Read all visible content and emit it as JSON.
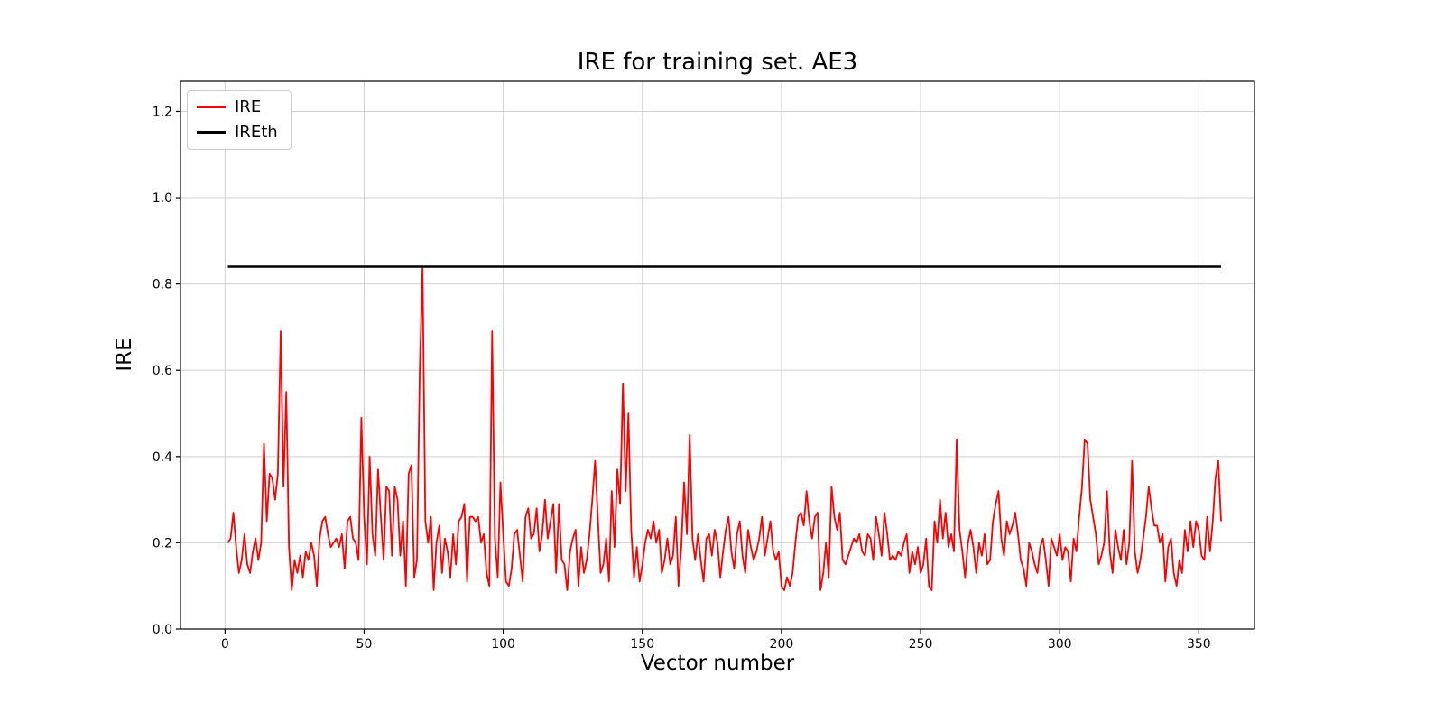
{
  "figure": {
    "background": "#ffffff"
  },
  "chart_data": {
    "type": "line",
    "title": "IRE for training set. AE3",
    "xlabel": "Vector number",
    "ylabel": "IRE",
    "xlim": [
      -16,
      370
    ],
    "ylim": [
      0,
      1.27
    ],
    "x_ticks": [
      0,
      50,
      100,
      150,
      200,
      250,
      300,
      350
    ],
    "x_tick_labels": [
      "0",
      "50",
      "100",
      "150",
      "200",
      "250",
      "300",
      "350"
    ],
    "y_ticks": [
      0.0,
      0.2,
      0.4,
      0.6,
      0.8,
      1.0,
      1.2
    ],
    "y_tick_labels": [
      "0.0",
      "0.2",
      "0.4",
      "0.6",
      "0.8",
      "1.0",
      "1.2"
    ],
    "grid": true,
    "grid_color": "#d0d0d0",
    "frame_color": "#000000",
    "legend": {
      "position": "upper left",
      "entries": [
        {
          "label": "IRE",
          "color": "#ff0000"
        },
        {
          "label": "IREth",
          "color": "#000000"
        }
      ]
    },
    "series": [
      {
        "name": "IRE",
        "color": "#ff0000",
        "line_width": 1.8,
        "x_start": 1,
        "values": [
          0.2,
          0.21,
          0.27,
          0.19,
          0.13,
          0.16,
          0.22,
          0.15,
          0.13,
          0.18,
          0.21,
          0.16,
          0.2,
          0.43,
          0.25,
          0.36,
          0.35,
          0.3,
          0.36,
          0.69,
          0.33,
          0.55,
          0.19,
          0.09,
          0.16,
          0.13,
          0.17,
          0.12,
          0.18,
          0.16,
          0.2,
          0.17,
          0.1,
          0.21,
          0.25,
          0.26,
          0.22,
          0.19,
          0.2,
          0.21,
          0.19,
          0.22,
          0.14,
          0.25,
          0.26,
          0.21,
          0.2,
          0.16,
          0.49,
          0.26,
          0.15,
          0.4,
          0.22,
          0.17,
          0.37,
          0.26,
          0.16,
          0.33,
          0.32,
          0.17,
          0.33,
          0.3,
          0.17,
          0.25,
          0.1,
          0.36,
          0.38,
          0.12,
          0.16,
          0.6,
          0.84,
          0.25,
          0.2,
          0.26,
          0.09,
          0.2,
          0.24,
          0.13,
          0.21,
          0.18,
          0.12,
          0.22,
          0.15,
          0.25,
          0.26,
          0.29,
          0.11,
          0.26,
          0.26,
          0.25,
          0.26,
          0.2,
          0.22,
          0.13,
          0.1,
          0.69,
          0.21,
          0.12,
          0.34,
          0.22,
          0.11,
          0.1,
          0.14,
          0.22,
          0.23,
          0.17,
          0.11,
          0.26,
          0.28,
          0.21,
          0.22,
          0.28,
          0.18,
          0.22,
          0.3,
          0.21,
          0.25,
          0.29,
          0.13,
          0.29,
          0.16,
          0.15,
          0.09,
          0.18,
          0.21,
          0.23,
          0.1,
          0.19,
          0.13,
          0.16,
          0.22,
          0.3,
          0.39,
          0.26,
          0.13,
          0.15,
          0.21,
          0.11,
          0.32,
          0.19,
          0.37,
          0.29,
          0.57,
          0.32,
          0.5,
          0.23,
          0.12,
          0.19,
          0.11,
          0.15,
          0.2,
          0.23,
          0.21,
          0.25,
          0.2,
          0.23,
          0.13,
          0.16,
          0.21,
          0.15,
          0.17,
          0.26,
          0.1,
          0.19,
          0.34,
          0.22,
          0.45,
          0.21,
          0.16,
          0.22,
          0.16,
          0.11,
          0.21,
          0.22,
          0.17,
          0.23,
          0.2,
          0.12,
          0.18,
          0.23,
          0.26,
          0.18,
          0.14,
          0.22,
          0.25,
          0.17,
          0.13,
          0.23,
          0.19,
          0.16,
          0.18,
          0.21,
          0.26,
          0.17,
          0.21,
          0.25,
          0.18,
          0.16,
          0.18,
          0.1,
          0.09,
          0.12,
          0.1,
          0.13,
          0.2,
          0.26,
          0.27,
          0.24,
          0.32,
          0.25,
          0.21,
          0.26,
          0.27,
          0.09,
          0.13,
          0.2,
          0.12,
          0.33,
          0.26,
          0.23,
          0.27,
          0.16,
          0.15,
          0.17,
          0.19,
          0.21,
          0.2,
          0.22,
          0.18,
          0.17,
          0.22,
          0.21,
          0.16,
          0.26,
          0.22,
          0.17,
          0.27,
          0.22,
          0.16,
          0.17,
          0.16,
          0.18,
          0.17,
          0.2,
          0.22,
          0.13,
          0.18,
          0.15,
          0.19,
          0.13,
          0.15,
          0.21,
          0.1,
          0.09,
          0.25,
          0.2,
          0.3,
          0.21,
          0.27,
          0.19,
          0.22,
          0.18,
          0.44,
          0.23,
          0.18,
          0.12,
          0.2,
          0.23,
          0.19,
          0.13,
          0.2,
          0.17,
          0.22,
          0.15,
          0.16,
          0.25,
          0.29,
          0.32,
          0.21,
          0.17,
          0.25,
          0.22,
          0.24,
          0.27,
          0.22,
          0.16,
          0.14,
          0.1,
          0.2,
          0.18,
          0.15,
          0.13,
          0.19,
          0.21,
          0.16,
          0.1,
          0.21,
          0.19,
          0.17,
          0.22,
          0.16,
          0.19,
          0.18,
          0.11,
          0.21,
          0.18,
          0.26,
          0.33,
          0.44,
          0.43,
          0.3,
          0.26,
          0.22,
          0.15,
          0.17,
          0.2,
          0.32,
          0.18,
          0.13,
          0.23,
          0.19,
          0.16,
          0.23,
          0.15,
          0.2,
          0.39,
          0.18,
          0.13,
          0.16,
          0.21,
          0.26,
          0.33,
          0.28,
          0.24,
          0.24,
          0.2,
          0.22,
          0.11,
          0.19,
          0.21,
          0.13,
          0.1,
          0.16,
          0.13,
          0.23,
          0.18,
          0.25,
          0.19,
          0.25,
          0.23,
          0.17,
          0.16,
          0.26,
          0.18,
          0.25,
          0.35,
          0.39,
          0.25
        ]
      },
      {
        "name": "IREth",
        "color": "#000000",
        "line_width": 2.5,
        "type": "hline",
        "value": 0.84,
        "x_range": [
          1,
          358
        ]
      }
    ]
  }
}
